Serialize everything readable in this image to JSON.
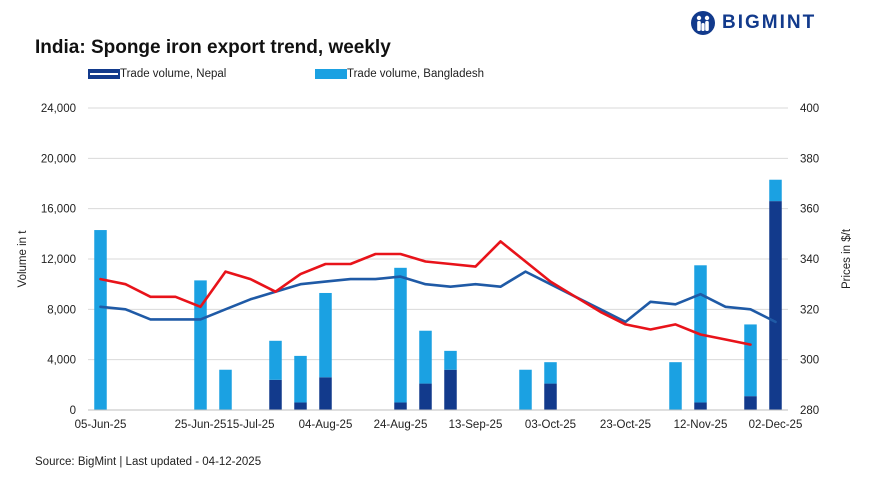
{
  "logo": {
    "text": "BIGMINT"
  },
  "chart_data": {
    "type": "bar",
    "title": "India: Sponge iron export trend, weekly",
    "source": "Source: BigMint | Last updated - 04-12-2025",
    "ylabel": "Volume in t",
    "y2label": "Prices in $/t",
    "ylim": [
      0,
      24000
    ],
    "y2lim": [
      280,
      400
    ],
    "yticks": [
      "0",
      "4,000",
      "8,000",
      "12,000",
      "16,000",
      "20,000",
      "24,000"
    ],
    "y2ticks": [
      "280",
      "300",
      "320",
      "340",
      "360",
      "380",
      "400"
    ],
    "x_tick_labels": [
      "05-Jun-25",
      "25-Jun-25",
      "15-Jul-25",
      "04-Aug-25",
      "24-Aug-25",
      "13-Sep-25",
      "03-Oct-25",
      "23-Oct-25",
      "12-Nov-25",
      "02-Dec-25"
    ],
    "x_tick_positions": [
      0,
      4,
      6,
      9,
      12,
      15,
      18,
      21,
      24,
      27
    ],
    "legend": [
      "Trade volume, Nepal",
      "Trade volume, Bangladesh"
    ],
    "colors": {
      "nepal": "#123a8c",
      "bangladesh": "#1ba1e2",
      "price_blue": "#1f5aa6",
      "price_red": "#e8131a",
      "grid": "#d9d9d9",
      "logo": "#123a8c"
    },
    "series": [
      {
        "name": "Trade volume, Nepal",
        "kind": "bar",
        "values": [
          0,
          0,
          0,
          0,
          0,
          0,
          0,
          2400,
          600,
          2600,
          0,
          0,
          600,
          2100,
          3200,
          0,
          0,
          0,
          2100,
          0,
          0,
          0,
          0,
          0,
          600,
          0,
          1100,
          16600
        ]
      },
      {
        "name": "Trade volume, Bangladesh",
        "kind": "bar",
        "values": [
          14300,
          0,
          0,
          0,
          10300,
          3200,
          0,
          3100,
          3700,
          6700,
          0,
          0,
          10700,
          4200,
          1500,
          0,
          0,
          3200,
          1700,
          0,
          0,
          0,
          0,
          3800,
          10900,
          0,
          5700,
          1700
        ]
      },
      {
        "name": "Price (blue)",
        "kind": "line",
        "values": [
          321,
          320,
          316,
          316,
          316,
          320,
          324,
          327,
          330,
          331,
          332,
          332,
          333,
          330,
          329,
          330,
          329,
          335,
          330,
          325,
          320,
          315,
          323,
          322,
          326,
          321,
          320,
          315
        ]
      },
      {
        "name": "Price (red)",
        "kind": "line",
        "values": [
          332,
          330,
          325,
          325,
          321,
          335,
          332,
          327,
          334,
          338,
          338,
          342,
          342,
          339,
          338,
          337,
          347,
          339,
          331,
          325,
          319,
          314,
          312,
          314,
          310,
          308,
          306
        ]
      }
    ]
  }
}
